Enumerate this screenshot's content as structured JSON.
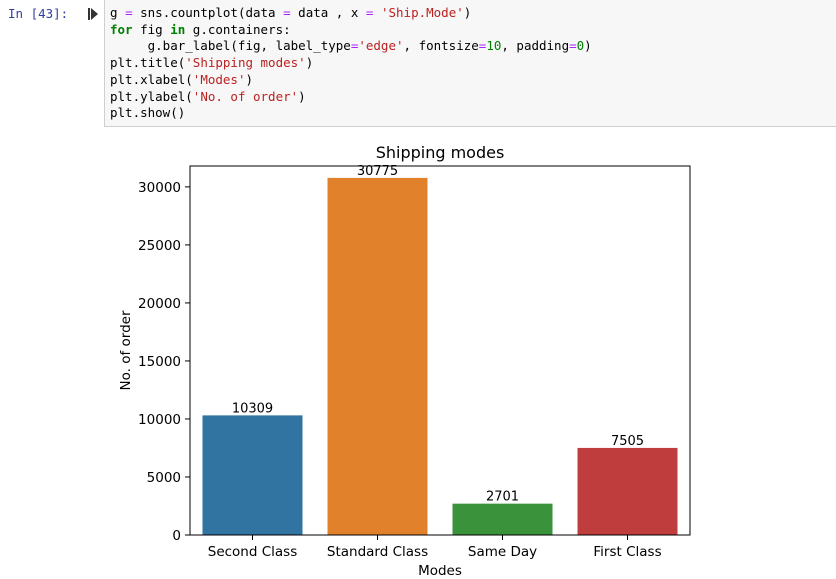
{
  "cell": {
    "prompt": "In [43]:",
    "code_lines": [
      [
        {
          "t": "g ",
          "c": ""
        },
        {
          "t": "=",
          "c": "op"
        },
        {
          "t": " sns.countplot(data ",
          "c": ""
        },
        {
          "t": "=",
          "c": "op"
        },
        {
          "t": " data , x ",
          "c": ""
        },
        {
          "t": "=",
          "c": "op"
        },
        {
          "t": " ",
          "c": ""
        },
        {
          "t": "'Ship.Mode'",
          "c": "str"
        },
        {
          "t": ")",
          "c": ""
        }
      ],
      [
        {
          "t": "for",
          "c": "kw"
        },
        {
          "t": " fig ",
          "c": ""
        },
        {
          "t": "in",
          "c": "kw"
        },
        {
          "t": " g.containers:",
          "c": ""
        }
      ],
      [
        {
          "t": "     g.bar_label(fig, label_type",
          "c": ""
        },
        {
          "t": "=",
          "c": "op"
        },
        {
          "t": "'edge'",
          "c": "str"
        },
        {
          "t": ", fontsize",
          "c": ""
        },
        {
          "t": "=",
          "c": "op"
        },
        {
          "t": "10",
          "c": "num"
        },
        {
          "t": ", padding",
          "c": ""
        },
        {
          "t": "=",
          "c": "op"
        },
        {
          "t": "0",
          "c": "num"
        },
        {
          "t": ")",
          "c": ""
        }
      ],
      [
        {
          "t": "plt.title(",
          "c": ""
        },
        {
          "t": "'Shipping modes'",
          "c": "str"
        },
        {
          "t": ")",
          "c": ""
        }
      ],
      [
        {
          "t": "plt.xlabel(",
          "c": ""
        },
        {
          "t": "'Modes'",
          "c": "str"
        },
        {
          "t": ")",
          "c": ""
        }
      ],
      [
        {
          "t": "plt.ylabel(",
          "c": ""
        },
        {
          "t": "'No. of order'",
          "c": "str"
        },
        {
          "t": ")",
          "c": ""
        }
      ],
      [
        {
          "t": "plt.show()",
          "c": ""
        }
      ]
    ]
  },
  "chart_data": {
    "type": "bar",
    "title": "Shipping modes",
    "xlabel": "Modes",
    "ylabel": "No. of order",
    "categories": [
      "Second Class",
      "Standard Class",
      "Same Day",
      "First Class"
    ],
    "values": [
      10309,
      30775,
      2701,
      7505
    ],
    "bar_labels": [
      "10309",
      "30775",
      "2701",
      "7505"
    ],
    "colors": [
      "#3274a1",
      "#e1812c",
      "#3a923a",
      "#c03d3e"
    ],
    "ylim": [
      0,
      31800
    ],
    "yticks": [
      0,
      5000,
      10000,
      15000,
      20000,
      25000,
      30000
    ],
    "grid": false,
    "legend": "none"
  }
}
